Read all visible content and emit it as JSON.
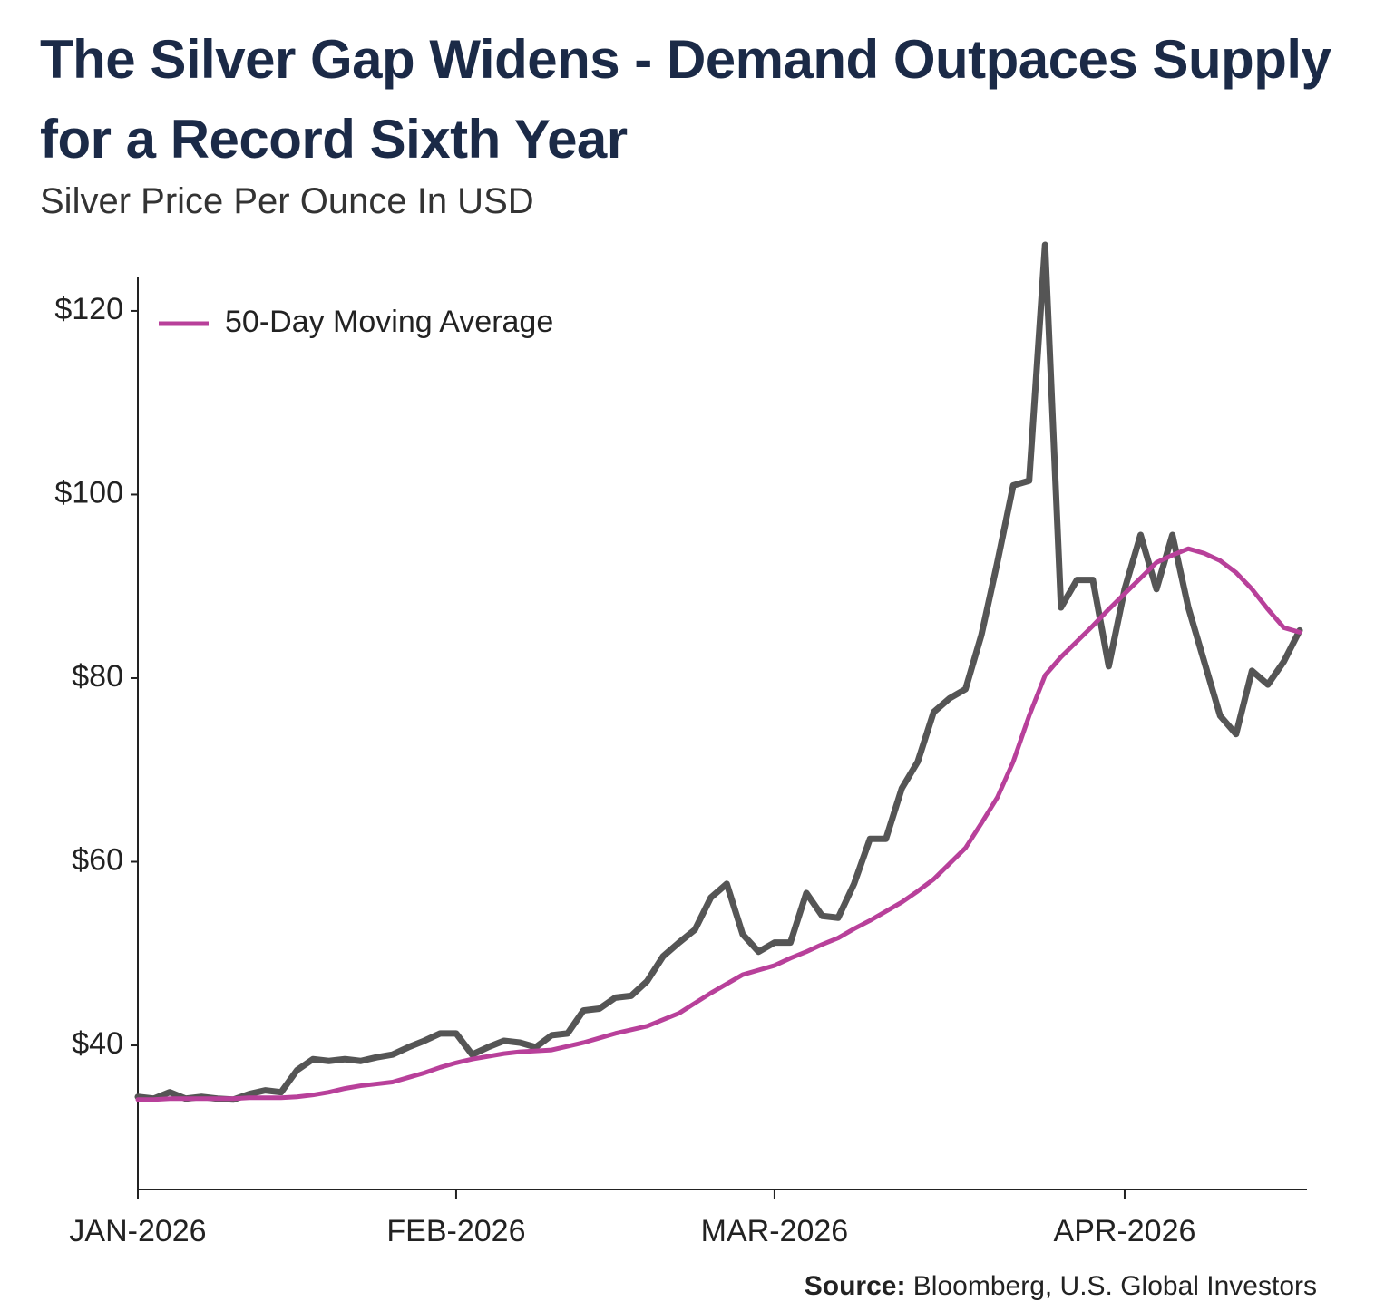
{
  "chart_data": {
    "type": "line",
    "title": "The Silver Gap Widens - Demand Outpaces Supply for a Record Sixth Year",
    "subtitle": "Silver Price Per Ounce In USD",
    "source_label": "Source:",
    "source": "Bloomberg, U.S. Global Investors",
    "x": [
      0,
      1,
      2,
      3,
      4,
      5,
      6,
      7,
      8,
      9,
      10,
      11,
      12,
      13,
      14,
      15,
      16,
      17,
      18,
      19,
      20,
      21,
      22,
      23,
      24,
      25,
      26,
      27,
      28,
      29,
      30,
      31,
      32,
      33,
      34,
      35,
      36,
      37,
      38,
      39,
      40,
      41,
      42,
      43,
      44,
      45,
      46,
      47,
      48,
      49,
      50,
      51,
      52,
      53,
      54,
      55,
      56,
      57,
      58,
      59,
      60,
      61,
      62,
      63,
      64,
      65,
      66,
      67,
      68,
      69,
      70,
      71,
      72,
      73
    ],
    "series": [
      {
        "color": "#555555",
        "values": [
          34.4,
          34.2,
          34.9,
          34.2,
          34.4,
          34.2,
          34.1,
          34.7,
          35.1,
          34.9,
          37.3,
          38.5,
          38.3,
          38.5,
          38.3,
          38.7,
          39,
          39.8,
          40.5,
          41.3,
          41.3,
          39,
          39.8,
          40.5,
          40.3,
          39.8,
          41.1,
          41.3,
          43.8,
          44,
          45.2,
          45.4,
          47,
          49.7,
          51.2,
          52.6,
          56.1,
          57.6,
          52.1,
          50.2,
          51.2,
          51.2,
          56.6,
          54.1,
          53.9,
          57.6,
          62.5,
          62.5,
          68,
          70.9,
          76.3,
          77.8,
          78.8,
          84.7,
          92.6,
          101,
          101.5,
          127.2,
          87.7,
          90.7,
          90.7,
          81.3,
          89.7,
          95.6,
          89.7,
          95.6,
          87.7,
          81.8,
          75.9,
          73.9,
          80.8,
          79.3,
          81.8,
          85.2
        ]
      },
      {
        "name": "50-Day Moving Average",
        "color": "#b8409a",
        "values": [
          34.1,
          34.1,
          34.2,
          34.2,
          34.2,
          34.2,
          34.2,
          34.3,
          34.3,
          34.3,
          34.4,
          34.6,
          34.9,
          35.3,
          35.6,
          35.8,
          36,
          36.5,
          37,
          37.6,
          38.1,
          38.5,
          38.8,
          39.1,
          39.3,
          39.4,
          39.5,
          39.9,
          40.3,
          40.8,
          41.3,
          41.7,
          42.1,
          42.8,
          43.5,
          44.6,
          45.7,
          46.7,
          47.7,
          48.2,
          48.7,
          49.5,
          50.2,
          51,
          51.7,
          52.7,
          53.6,
          54.6,
          55.6,
          56.8,
          58.1,
          59.8,
          61.5,
          64.2,
          67,
          70.9,
          75.9,
          80.3,
          82.3,
          84,
          85.7,
          87.5,
          89.2,
          90.9,
          92.6,
          93.4,
          94.1,
          93.6,
          92.8,
          91.5,
          89.7,
          87.5,
          85.5,
          85
        ]
      }
    ],
    "xlim": [
      0,
      73
    ],
    "xticks": [
      {
        "value": 0,
        "label": "JAN-2026"
      },
      {
        "value": 20,
        "label": "FEB-2026"
      },
      {
        "value": 40,
        "label": "MAR-2026"
      },
      {
        "value": 62,
        "label": "APR-2026"
      }
    ],
    "ylim": [
      24.3,
      127.5
    ],
    "yticks": [
      {
        "value": 40,
        "label": "$40"
      },
      {
        "value": 60,
        "label": "$60"
      },
      {
        "value": 80,
        "label": "$80"
      },
      {
        "value": 100,
        "label": "$100"
      },
      {
        "value": 120,
        "label": "$120"
      }
    ],
    "grid": false
  }
}
